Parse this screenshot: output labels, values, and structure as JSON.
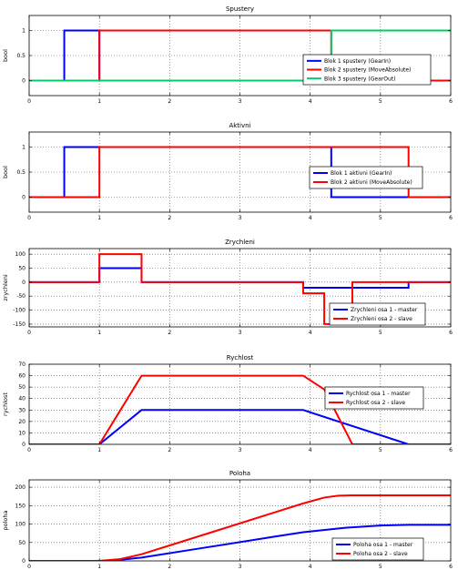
{
  "chart_data": [
    {
      "type": "line",
      "title": "Spustery",
      "ylabel": "bool",
      "xlim": [
        0,
        6
      ],
      "ylim": [
        -0.3,
        1.3
      ],
      "xticks": [
        0,
        1,
        2,
        3,
        4,
        5,
        6
      ],
      "yticks": [
        0,
        0.5,
        1
      ],
      "yticklabels": [
        "0",
        "0.5",
        "1"
      ],
      "grid": true,
      "legend": "right",
      "series": [
        {
          "name": "Blok 1 spustery (GearIn)",
          "color": "#0000ff",
          "x": [
            0,
            0.5,
            0.5,
            1.0,
            1.0,
            6
          ],
          "y": [
            0,
            0,
            1,
            1,
            0,
            0
          ]
        },
        {
          "name": "Blok 2 spustery (MoveAbsolute)",
          "color": "#ff0000",
          "x": [
            0,
            1.0,
            1.0,
            4.3,
            4.3,
            6
          ],
          "y": [
            0,
            0,
            1,
            1,
            0,
            0
          ]
        },
        {
          "name": "Blok 3 spustery (GearOut)",
          "color": "#00cc66",
          "x": [
            0,
            4.3,
            4.3,
            6
          ],
          "y": [
            0,
            0,
            1,
            1
          ]
        }
      ]
    },
    {
      "type": "line",
      "title": "Aktivni",
      "ylabel": "bool",
      "xlim": [
        0,
        6
      ],
      "ylim": [
        -0.3,
        1.3
      ],
      "xticks": [
        0,
        1,
        2,
        3,
        4,
        5,
        6
      ],
      "yticks": [
        0,
        0.5,
        1
      ],
      "yticklabels": [
        "0",
        "0.5",
        "1"
      ],
      "grid": true,
      "legend": "right",
      "series": [
        {
          "name": "Blok 1 aktivni (GearIn)",
          "color": "#0000ff",
          "x": [
            0,
            0.5,
            0.5,
            4.3,
            4.3,
            6
          ],
          "y": [
            0,
            0,
            1,
            1,
            0,
            0
          ]
        },
        {
          "name": "Blok 2 aktivni (MoveAbsolute)",
          "color": "#ff0000",
          "x": [
            0,
            1.0,
            1.0,
            5.4,
            5.4,
            6
          ],
          "y": [
            0,
            0,
            1,
            1,
            0,
            0
          ]
        }
      ]
    },
    {
      "type": "line",
      "title": "Zrychleni",
      "ylabel": "zrychleni",
      "xlim": [
        0,
        6
      ],
      "ylim": [
        -160,
        120
      ],
      "xticks": [
        0,
        1,
        2,
        3,
        4,
        5,
        6
      ],
      "yticks": [
        -150,
        -100,
        -50,
        0,
        50,
        100
      ],
      "yticklabels": [
        "-150",
        "-100",
        "-50",
        "0",
        "50",
        "100"
      ],
      "grid": true,
      "legend": "lower right",
      "series": [
        {
          "name": "Zrychleni osa 1 - master",
          "color": "#0000ff",
          "x": [
            0,
            1.0,
            1.0,
            1.6,
            1.6,
            3.9,
            3.9,
            5.4,
            5.4,
            6
          ],
          "y": [
            0,
            0,
            50,
            50,
            0,
            0,
            -20,
            -20,
            0,
            0
          ]
        },
        {
          "name": "Zrychleni osa 2 - slave",
          "color": "#ff0000",
          "x": [
            0,
            1.0,
            1.0,
            1.6,
            1.6,
            3.9,
            3.9,
            4.2,
            4.2,
            4.6,
            4.6,
            6
          ],
          "y": [
            0,
            0,
            100,
            100,
            0,
            0,
            -40,
            -40,
            -150,
            -150,
            0,
            0
          ]
        }
      ]
    },
    {
      "type": "line",
      "title": "Rychlost",
      "ylabel": "rychlost",
      "xlim": [
        0,
        6
      ],
      "ylim": [
        0,
        70
      ],
      "xticks": [
        0,
        1,
        2,
        3,
        4,
        5,
        6
      ],
      "yticks": [
        0,
        10,
        20,
        30,
        40,
        50,
        60,
        70
      ],
      "yticklabels": [
        "0",
        "10",
        "20",
        "30",
        "40",
        "50",
        "60",
        "70"
      ],
      "grid": true,
      "legend": "right",
      "series": [
        {
          "name": "Rychlost osa 1 - master",
          "color": "#0000ff",
          "x": [
            0,
            1.0,
            1.6,
            3.9,
            5.4,
            6
          ],
          "y": [
            0,
            0,
            30,
            30,
            0,
            0
          ]
        },
        {
          "name": "Rychlost osa 2 - slave",
          "color": "#ff0000",
          "x": [
            0,
            1.0,
            1.6,
            3.9,
            4.2,
            4.6,
            6
          ],
          "y": [
            0,
            0,
            60,
            60,
            48,
            0,
            0
          ]
        }
      ]
    },
    {
      "type": "line",
      "title": "Poloha",
      "ylabel": "poloha",
      "xlim": [
        0,
        6
      ],
      "ylim": [
        0,
        220
      ],
      "xticks": [
        0,
        1,
        2,
        3,
        4,
        5,
        6
      ],
      "yticks": [
        0,
        50,
        100,
        150,
        200
      ],
      "yticklabels": [
        "0",
        "50",
        "100",
        "150",
        "200"
      ],
      "grid": true,
      "legend": "lower right",
      "series": [
        {
          "name": "Poloha osa 1 - master",
          "color": "#0000ff",
          "x": [
            0,
            1.0,
            1.3,
            1.6,
            2.5,
            3.5,
            3.9,
            4.5,
            5.0,
            5.4,
            6
          ],
          "y": [
            0,
            0,
            3,
            9,
            36,
            66,
            78,
            90,
            96,
            98,
            98
          ]
        },
        {
          "name": "Poloha osa 2 - slave",
          "color": "#ff0000",
          "x": [
            0,
            1.0,
            1.3,
            1.6,
            2.0,
            2.5,
            3.0,
            3.5,
            3.9,
            4.2,
            4.4,
            4.6,
            6
          ],
          "y": [
            0,
            0,
            5,
            18,
            42,
            72,
            102,
            132,
            156,
            172,
            177,
            178,
            178
          ]
        }
      ]
    }
  ]
}
